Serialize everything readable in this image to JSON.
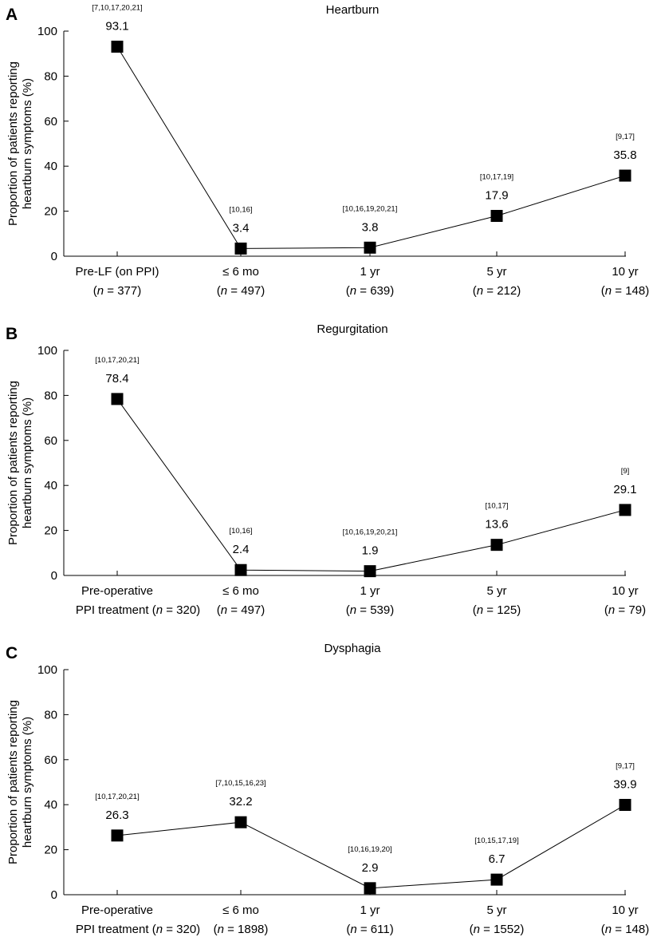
{
  "chart_data": [
    {
      "type": "line",
      "panel": "A",
      "title": "Heartburn",
      "ylabel": [
        "Proportion of patients reporting",
        "heartburn symptoms (%)"
      ],
      "ylim": [
        0,
        100
      ],
      "yticks": [
        0,
        20,
        40,
        60,
        80,
        100
      ],
      "categories": [
        {
          "line1": "Pre-LF (on PPI)",
          "n": "377"
        },
        {
          "line1": "≤ 6 mo",
          "n": "497"
        },
        {
          "line1": "1 yr",
          "n": "639"
        },
        {
          "line1": "5 yr",
          "n": "212"
        },
        {
          "line1": "10 yr",
          "n": "148"
        }
      ],
      "values": [
        93.1,
        3.4,
        3.8,
        17.9,
        35.8
      ],
      "labels": [
        "93.1",
        "3.4",
        "3.8",
        "17.9",
        "35.8"
      ],
      "refs": [
        "[7,10,17,20,21]",
        "[10,16]",
        "[10,16,19,20,21]",
        "[10,17,19]",
        "[9,17]"
      ]
    },
    {
      "type": "line",
      "panel": "B",
      "title": "Regurgitation",
      "ylabel": [
        "Proportion of patients reporting",
        "heartburn symptoms (%)"
      ],
      "ylim": [
        0,
        100
      ],
      "yticks": [
        0,
        20,
        40,
        60,
        80,
        100
      ],
      "categories": [
        {
          "line1": "Pre-operative",
          "prefix": "PPI treatment",
          "n": "320"
        },
        {
          "line1": "≤ 6 mo",
          "n": "497"
        },
        {
          "line1": "1 yr",
          "n": "539"
        },
        {
          "line1": "5 yr",
          "n": "125"
        },
        {
          "line1": "10 yr",
          "n": "79"
        }
      ],
      "values": [
        78.4,
        2.4,
        1.9,
        13.6,
        29.1
      ],
      "labels": [
        "78.4",
        "2.4",
        "1.9",
        "13.6",
        "29.1"
      ],
      "refs": [
        "[10,17,20,21]",
        "[10,16]",
        "[10,16,19,20,21]",
        "[10,17]",
        "[9]"
      ]
    },
    {
      "type": "line",
      "panel": "C",
      "title": "Dysphagia",
      "ylabel": [
        "Proportion of patients reporting",
        "heartburn symptoms (%)"
      ],
      "ylim": [
        0,
        100
      ],
      "yticks": [
        0,
        20,
        40,
        60,
        80,
        100
      ],
      "categories": [
        {
          "line1": "Pre-operative",
          "prefix": "PPI treatment",
          "n": "320"
        },
        {
          "line1": "≤ 6 mo",
          "n": "1898"
        },
        {
          "line1": "1 yr",
          "n": "611"
        },
        {
          "line1": "5 yr",
          "n": "1552"
        },
        {
          "line1": "10 yr",
          "n": "148"
        }
      ],
      "values": [
        26.3,
        32.2,
        2.9,
        6.7,
        39.9
      ],
      "labels": [
        "26.3",
        "32.2",
        "2.9",
        "6.7",
        "39.9"
      ],
      "refs": [
        "[10,17,20,21]",
        "[7,10,15,16,23]",
        "[10,16,19,20]",
        "[10,15,17,19]",
        "[9,17]"
      ]
    }
  ],
  "n_symbol": "n",
  "n_eq": " = "
}
